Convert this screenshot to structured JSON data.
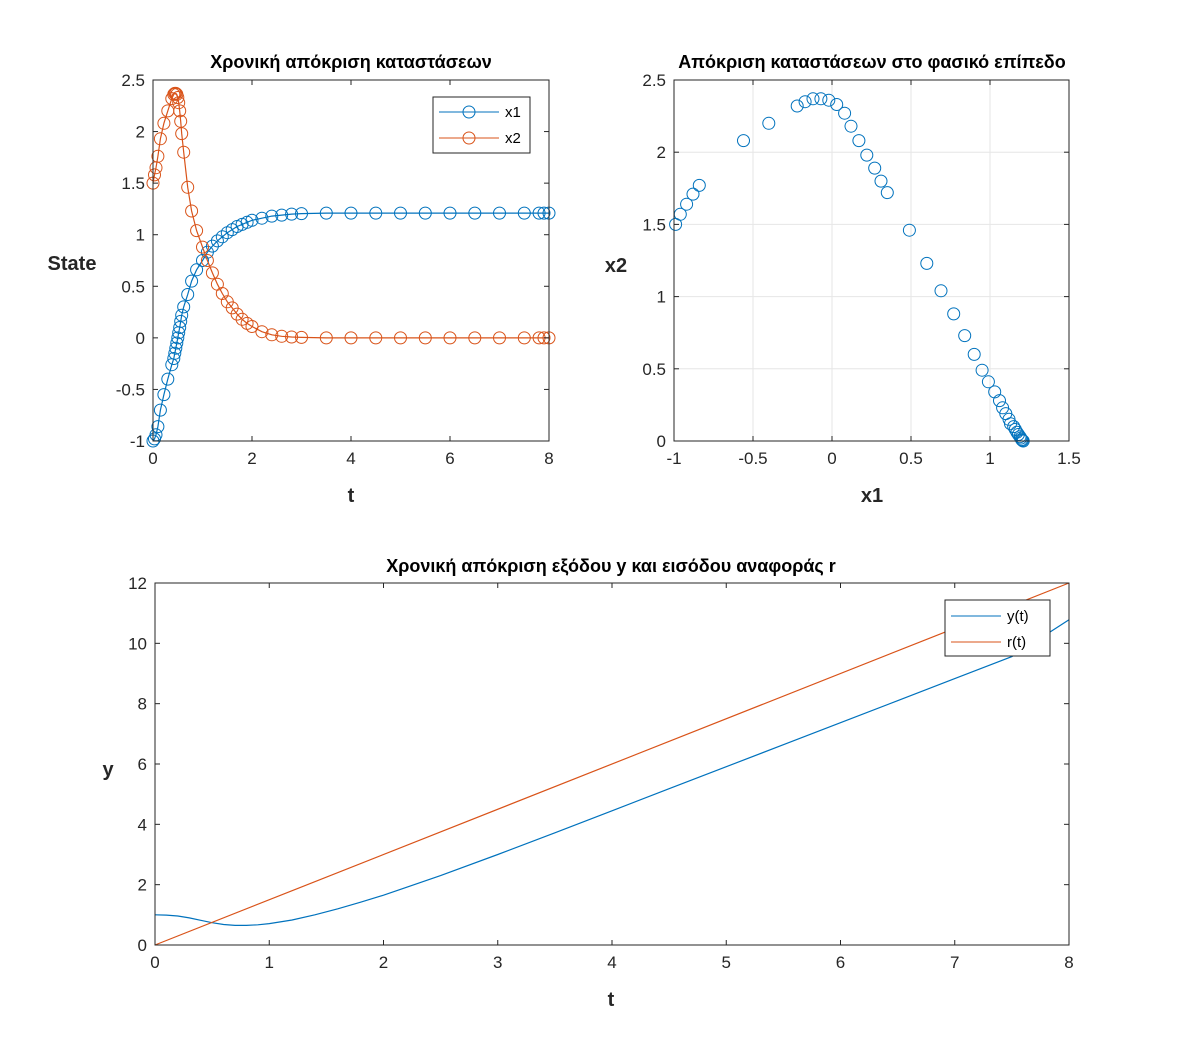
{
  "colors": {
    "blue": "#0072BD",
    "orange": "#D95319",
    "grid": "#e6e6e6",
    "axis": "#262626"
  },
  "chart_data": [
    {
      "type": "line",
      "title": "Χρονική απόκριση καταστάσεων",
      "xlabel": "t",
      "ylabel": "State",
      "xlim": [
        0,
        8
      ],
      "ylim": [
        -1,
        2.5
      ],
      "xticks": [
        "0",
        "2",
        "4",
        "6",
        "8"
      ],
      "yticks": [
        "-1",
        "-0.5",
        "0",
        "0.5",
        "1",
        "1.5",
        "2",
        "2.5"
      ],
      "grid": false,
      "legend_position": "top-right",
      "markers": "circle",
      "series": [
        {
          "name": "x1",
          "color": "#0072BD",
          "x": [
            0,
            0.03,
            0.06,
            0.1,
            0.15,
            0.22,
            0.3,
            0.38,
            0.42,
            0.44,
            0.46,
            0.48,
            0.5,
            0.52,
            0.54,
            0.56,
            0.58,
            0.62,
            0.7,
            0.78,
            0.88,
            1.0,
            1.1,
            1.2,
            1.3,
            1.4,
            1.5,
            1.6,
            1.7,
            1.8,
            1.9,
            2.0,
            2.2,
            2.4,
            2.6,
            2.8,
            3.0,
            3.5,
            4.0,
            4.5,
            5.0,
            5.5,
            6.0,
            6.5,
            7.0,
            7.5,
            7.8,
            7.9,
            8.0
          ],
          "y": [
            -1.0,
            -0.98,
            -0.94,
            -0.86,
            -0.7,
            -0.55,
            -0.4,
            -0.26,
            -0.2,
            -0.15,
            -0.1,
            -0.05,
            0.0,
            0.05,
            0.1,
            0.16,
            0.22,
            0.3,
            0.42,
            0.55,
            0.66,
            0.75,
            0.83,
            0.89,
            0.94,
            0.98,
            1.02,
            1.05,
            1.08,
            1.1,
            1.12,
            1.14,
            1.16,
            1.18,
            1.19,
            1.2,
            1.205,
            1.21,
            1.21,
            1.21,
            1.21,
            1.21,
            1.21,
            1.21,
            1.21,
            1.21,
            1.21,
            1.21,
            1.21
          ]
        },
        {
          "name": "x2",
          "color": "#D95319",
          "x": [
            0,
            0.03,
            0.06,
            0.1,
            0.15,
            0.22,
            0.3,
            0.38,
            0.42,
            0.44,
            0.46,
            0.48,
            0.5,
            0.52,
            0.54,
            0.56,
            0.58,
            0.62,
            0.7,
            0.78,
            0.88,
            1.0,
            1.1,
            1.2,
            1.3,
            1.4,
            1.5,
            1.6,
            1.7,
            1.8,
            1.9,
            2.0,
            2.2,
            2.4,
            2.6,
            2.8,
            3.0,
            3.5,
            4.0,
            4.5,
            5.0,
            5.5,
            6.0,
            6.5,
            7.0,
            7.5,
            7.8,
            7.9,
            8.0
          ],
          "y": [
            1.5,
            1.58,
            1.65,
            1.76,
            1.93,
            2.08,
            2.2,
            2.32,
            2.36,
            2.37,
            2.37,
            2.36,
            2.33,
            2.28,
            2.2,
            2.1,
            1.98,
            1.8,
            1.46,
            1.23,
            1.04,
            0.88,
            0.75,
            0.63,
            0.52,
            0.43,
            0.35,
            0.29,
            0.23,
            0.18,
            0.14,
            0.11,
            0.06,
            0.03,
            0.015,
            0.008,
            0.004,
            0.0,
            0.0,
            0.0,
            0.0,
            0.0,
            0.0,
            0.0,
            0.0,
            0.0,
            0.0,
            0.0,
            0.0
          ]
        }
      ]
    },
    {
      "type": "scatter",
      "title": "Απόκριση καταστάσεων στο φασικό επίπεδο",
      "xlabel": "x1",
      "ylabel": "x2",
      "xlim": [
        -1,
        1.5
      ],
      "ylim": [
        0,
        2.5
      ],
      "xticks": [
        "-1",
        "-0.5",
        "0",
        "0.5",
        "1",
        "1.5"
      ],
      "yticks": [
        "0",
        "0.5",
        "1",
        "1.5",
        "2",
        "2.5"
      ],
      "grid": true,
      "markers": "circle",
      "series": [
        {
          "color": "#0072BD",
          "x": [
            -0.99,
            -0.96,
            -0.92,
            -0.88,
            -0.84,
            -0.56,
            -0.4,
            -0.22,
            -0.17,
            -0.12,
            -0.07,
            -0.02,
            0.03,
            0.08,
            0.12,
            0.17,
            0.22,
            0.27,
            0.31,
            0.35,
            0.49,
            0.6,
            0.69,
            0.77,
            0.84,
            0.9,
            0.95,
            0.99,
            1.03,
            1.06,
            1.08,
            1.1,
            1.12,
            1.13,
            1.15,
            1.16,
            1.17,
            1.18,
            1.19,
            1.195,
            1.2,
            1.205,
            1.21
          ],
          "y": [
            1.5,
            1.57,
            1.64,
            1.71,
            1.77,
            2.08,
            2.2,
            2.32,
            2.35,
            2.37,
            2.37,
            2.36,
            2.33,
            2.27,
            2.18,
            2.08,
            1.98,
            1.89,
            1.8,
            1.72,
            1.46,
            1.23,
            1.04,
            0.88,
            0.73,
            0.6,
            0.49,
            0.41,
            0.34,
            0.28,
            0.23,
            0.19,
            0.15,
            0.12,
            0.1,
            0.08,
            0.06,
            0.045,
            0.03,
            0.02,
            0.01,
            0.005,
            0.0
          ]
        }
      ]
    },
    {
      "type": "line",
      "title": "Χρονική απόκριση εξόδου y και εισόδου αναφοράς r",
      "xlabel": "t",
      "ylabel": "y",
      "xlim": [
        0,
        8
      ],
      "ylim": [
        0,
        12
      ],
      "xticks": [
        "0",
        "1",
        "2",
        "3",
        "4",
        "5",
        "6",
        "7",
        "8"
      ],
      "yticks": [
        "0",
        "2",
        "4",
        "6",
        "8",
        "10",
        "12"
      ],
      "grid": false,
      "legend_position": "top-right",
      "series": [
        {
          "name": "y(t)",
          "color": "#0072BD",
          "x": [
            0,
            0.1,
            0.2,
            0.3,
            0.4,
            0.5,
            0.6,
            0.7,
            0.8,
            0.9,
            1.0,
            1.2,
            1.4,
            1.6,
            1.8,
            2.0,
            2.5,
            3.0,
            3.5,
            4.0,
            4.5,
            5.0,
            5.5,
            6.0,
            6.5,
            7.0,
            7.5,
            8.0
          ],
          "y": [
            1.0,
            0.99,
            0.96,
            0.9,
            0.82,
            0.74,
            0.68,
            0.65,
            0.65,
            0.67,
            0.71,
            0.83,
            1.0,
            1.2,
            1.42,
            1.65,
            2.3,
            3.0,
            3.72,
            4.45,
            5.18,
            5.91,
            6.64,
            7.37,
            8.1,
            8.83,
            9.56,
            10.78
          ]
        },
        {
          "name": "r(t)",
          "color": "#D95319",
          "x": [
            0,
            8
          ],
          "y": [
            0,
            12
          ]
        }
      ]
    }
  ]
}
